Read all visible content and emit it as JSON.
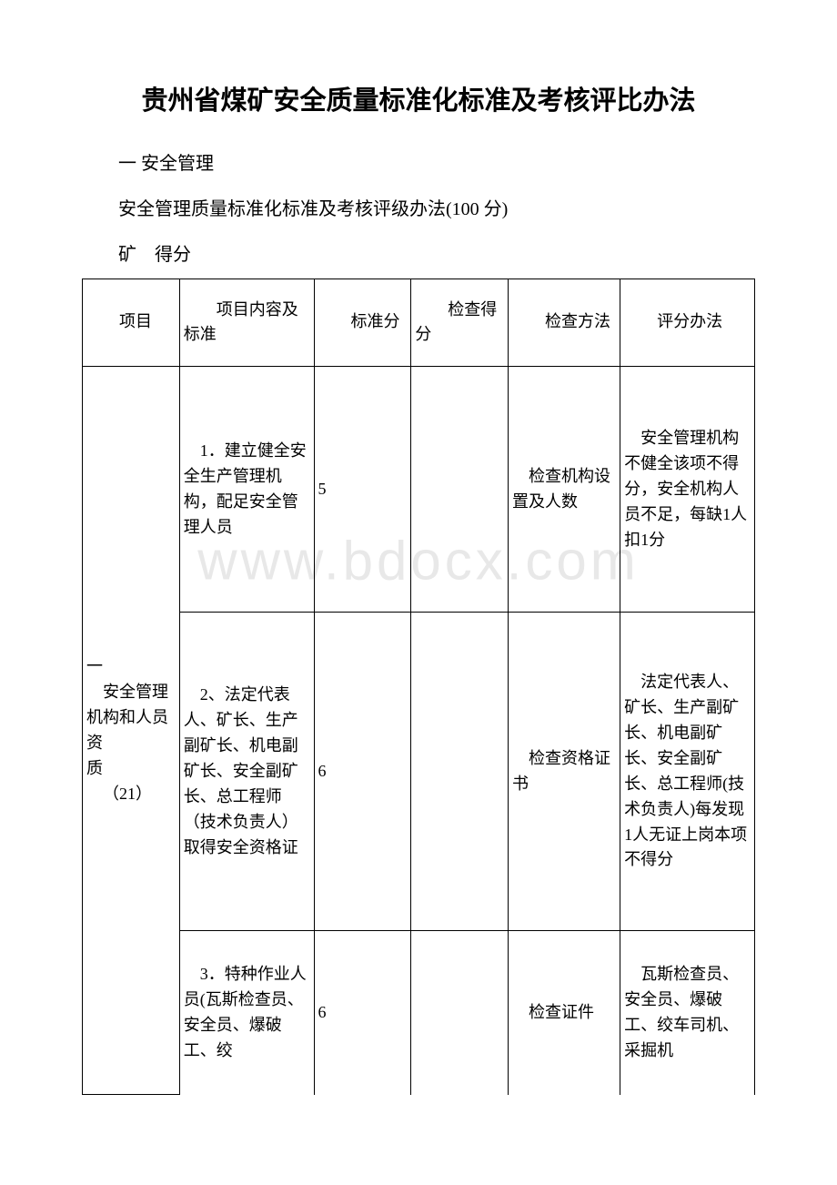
{
  "watermark": "www.bdocx.com",
  "title": "贵州省煤矿安全质量标准化标准及考核评比办法",
  "section": "一 安全管理",
  "subheading": "安全管理质量标准化标准及考核评级办法(100 分)",
  "score_line": "矿 得分",
  "headers": {
    "col1": "项目",
    "col2": "项目内容及标准",
    "col3": "标准分",
    "col4": "检查得分",
    "col5": "检查方法",
    "col6": "评分办法"
  },
  "category": {
    "name": "一\n 安全管理机构和人员资\n质\n （21）",
    "rows": [
      {
        "content": " 1．建立健全安全生产管理机构，配足安全管理人员",
        "score": "5",
        "check_score": "",
        "method": " 检查机构设置及人数",
        "eval": " 安全管理机构不健全该项不得分，安全机构人员不足，每缺1人扣1分"
      },
      {
        "content": " 2、法定代表人、矿长、生产副矿长、机电副矿长、安全副矿长、总工程师（技术负责人）取得安全资格证",
        "score": "6",
        "check_score": "",
        "method": " 检查资格证书",
        "eval": " 法定代表人、矿长、生产副矿长、机电副矿长、安全副矿长、总工程师(技术负责人)每发现1人无证上岗本项不得分"
      },
      {
        "content": " 3．特种作业人员(瓦斯检查员、安全员、爆破工、绞",
        "score": "6",
        "check_score": "",
        "method": " 检查证件",
        "eval": " 瓦斯检查员、安全员、爆破工、绞车司机、采掘机"
      }
    ]
  }
}
